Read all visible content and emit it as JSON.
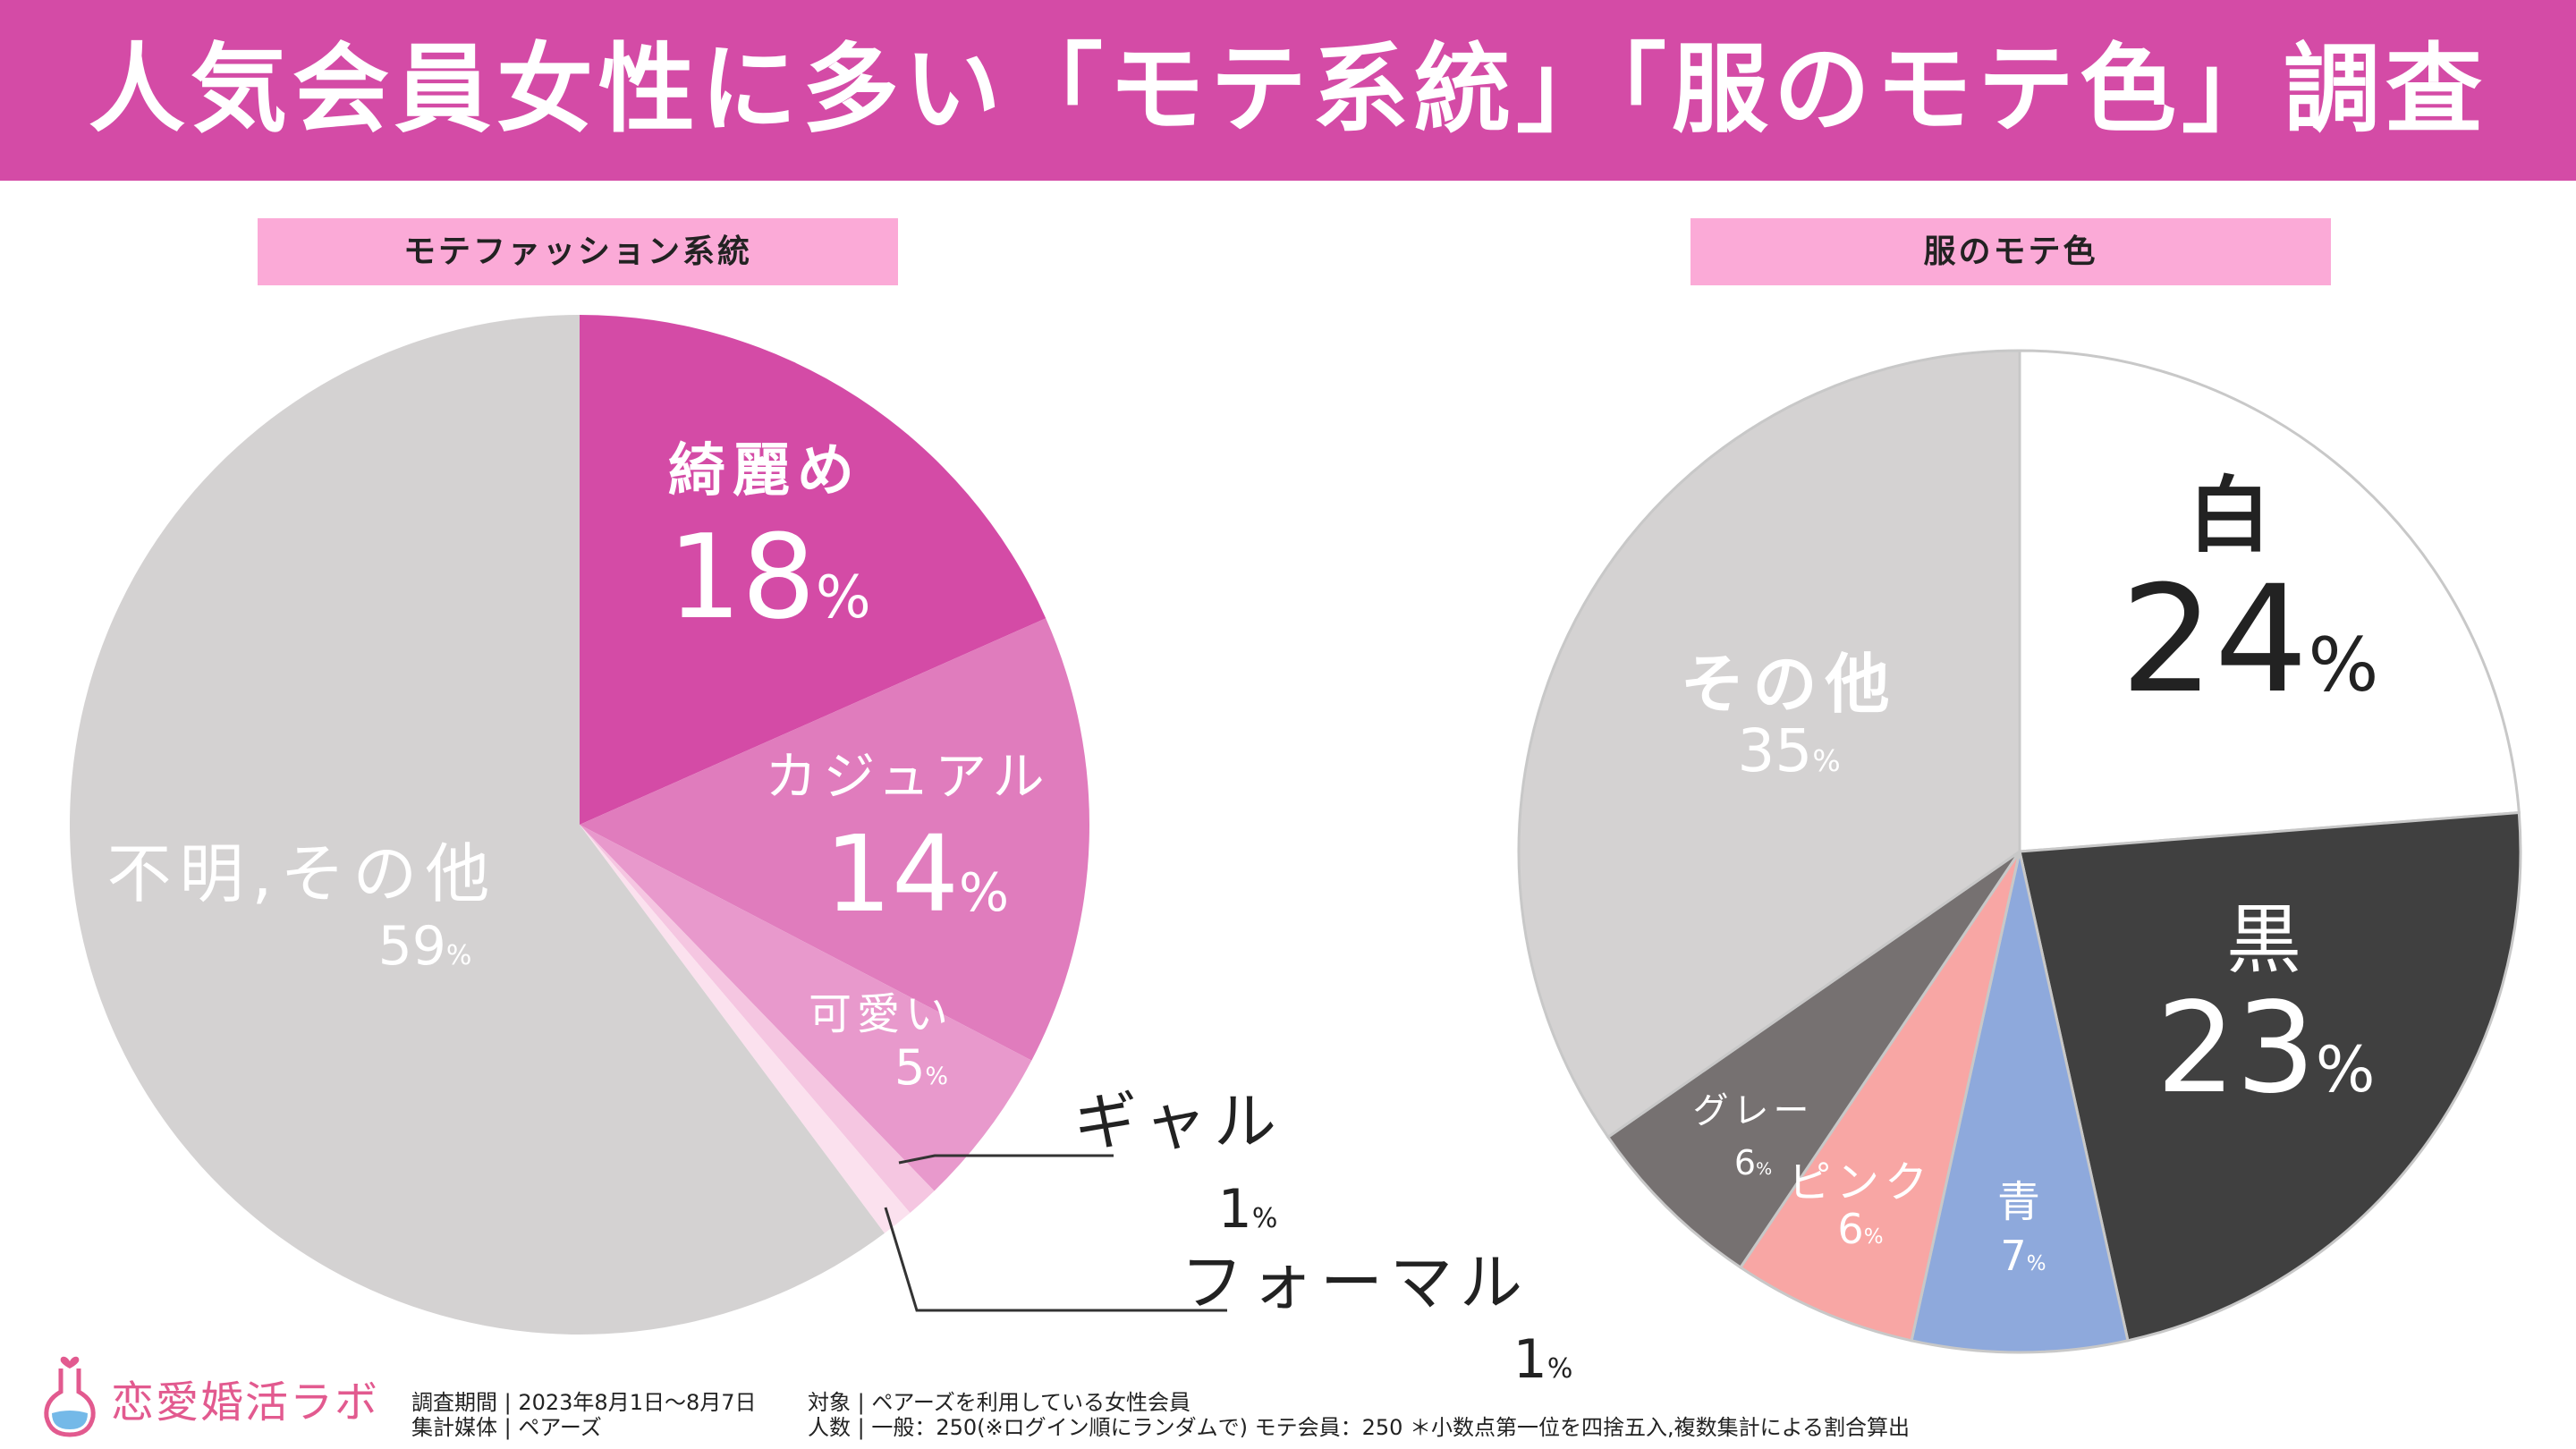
{
  "header": {
    "title": "人気会員女性に多い「モテ系統」「服のモテ色」調査"
  },
  "chart_labels": {
    "left": "モテファッション系統",
    "right": "服のモテ色"
  },
  "chart_data": [
    {
      "type": "pie",
      "title": "モテファッション系統",
      "start": "12 o'clock, clockwise",
      "slices": [
        {
          "name": "綺麗め",
          "value": 18,
          "unit": "%",
          "color": "#d44ba6"
        },
        {
          "name": "カジュアル",
          "value": 14,
          "unit": "%",
          "color": "#e07cbd"
        },
        {
          "name": "可愛い",
          "value": 5,
          "unit": "%",
          "color": "#e899cc"
        },
        {
          "name": "ギャル",
          "value": 1,
          "unit": "%",
          "color": "#f5c6e1"
        },
        {
          "name": "フォーマル",
          "value": 1,
          "unit": "%",
          "color": "#fbe1ee"
        },
        {
          "name": "不明,その他",
          "value": 59,
          "unit": "%",
          "color": "#d4d2d2"
        }
      ]
    },
    {
      "type": "pie",
      "title": "服のモテ色",
      "start": "12 o'clock, clockwise",
      "slices": [
        {
          "name": "白",
          "value": 24,
          "unit": "%",
          "color": "#ffffff"
        },
        {
          "name": "黒",
          "value": 23,
          "unit": "%",
          "color": "#404040"
        },
        {
          "name": "青",
          "value": 7,
          "unit": "%",
          "color": "#8ea9dc"
        },
        {
          "name": "ピンク",
          "value": 6,
          "unit": "%",
          "color": "#f8a6a4"
        },
        {
          "name": "グレー",
          "value": 6,
          "unit": "%",
          "color": "#767171"
        },
        {
          "name": "その他",
          "value": 35,
          "unit": "%",
          "color": "#d4d2d2"
        }
      ]
    }
  ],
  "footer": {
    "logo_text": "恋愛婚活ラボ",
    "survey_period": "調査期間 | 2023年8月1日～8月7日",
    "target": "対象 | ペアーズを利用している女性会員",
    "media": "集計媒体 | ペアーズ",
    "sample": "人数 | 一般：250(※ログイン順にランダムで) モテ会員：250 ＊小数点第一位を四捨五入,複数集計による割合算出"
  }
}
